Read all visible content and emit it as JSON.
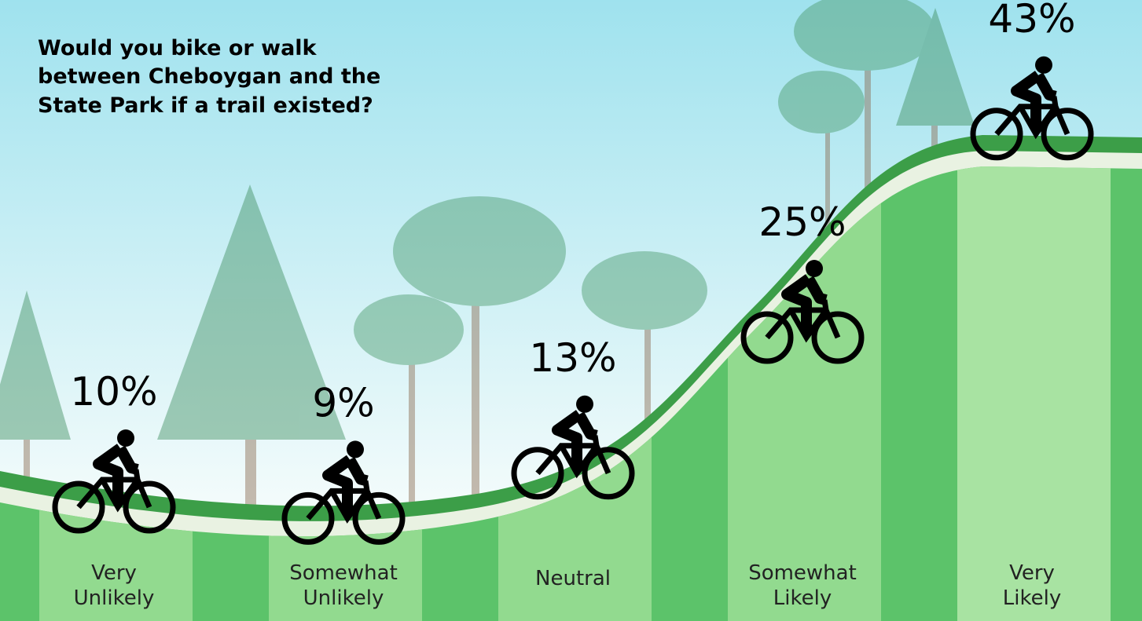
{
  "chart_data": {
    "type": "pictograph",
    "title": "Would you bike or walk between Cheboygan and the State Park if a trail existed?",
    "categories": [
      "Very Unlikely",
      "Somewhat Unlikely",
      "Neutral",
      "Somewhat Likely",
      "Very Likely"
    ],
    "values": [
      10,
      9,
      13,
      25,
      43
    ],
    "value_labels": [
      "10%",
      "9%",
      "13%",
      "25%",
      "43%"
    ],
    "color": "#000000"
  }
}
